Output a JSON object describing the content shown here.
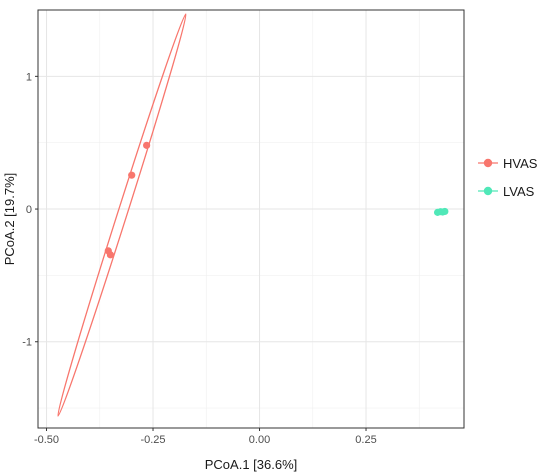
{
  "chart_data": {
    "type": "scatter",
    "xlabel": "PCoA.1 [36.6%]",
    "ylabel": "PCoA.2 [19.7%]",
    "xlim": [
      -0.52,
      0.48
    ],
    "ylim": [
      -1.65,
      1.5
    ],
    "xticks": [
      -0.5,
      -0.25,
      0.0,
      0.25
    ],
    "xtick_labels": [
      "-0.50",
      "-0.25",
      "0.00",
      "0.25"
    ],
    "yticks": [
      -1,
      0,
      1
    ],
    "ytick_labels": [
      "-1",
      "0",
      "1"
    ],
    "grid": true,
    "legend_position": "right",
    "series": [
      {
        "name": "HVAS",
        "color": "#f8766d",
        "points": [
          [
            -0.265,
            0.48
          ],
          [
            -0.3,
            0.255
          ],
          [
            -0.355,
            -0.315
          ],
          [
            -0.35,
            -0.345
          ]
        ],
        "ellipse": {
          "center": [
            -0.323,
            -0.04
          ],
          "tip_a": [
            -0.173,
            1.47
          ],
          "tip_b": [
            -0.473,
            -1.56
          ],
          "minor_half_width_x": 0.011
        }
      },
      {
        "name": "LVAS",
        "color": "#50e8b8",
        "points": [
          [
            0.418,
            -0.025
          ],
          [
            0.425,
            -0.02
          ],
          [
            0.43,
            -0.022
          ],
          [
            0.435,
            -0.018
          ]
        ]
      }
    ]
  }
}
